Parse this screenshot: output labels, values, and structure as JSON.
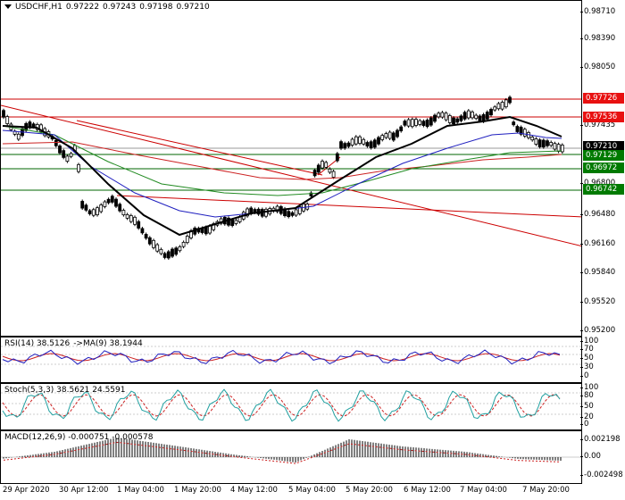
{
  "symbol": "USDCHF,H1",
  "ohlc": [
    "0.97222",
    "0.97243",
    "0.97198",
    "0.97210"
  ],
  "colors": {
    "bg": "#ffffff",
    "candle": "#000000",
    "trendline": "#cc0000",
    "hline_red": "#cc0000",
    "hline_green": "#006400",
    "ma_black": "#000000",
    "ma_blue": "#1f1fbf",
    "ma_green": "#228b22",
    "ma_red": "#cc2222",
    "price_label_red": "#e81010",
    "price_label_green": "#007a00",
    "price_label_current": "#000000"
  },
  "price_axis": [
    "0.98710",
    "0.98390",
    "0.98050",
    "0.97435",
    "0.96800",
    "0.96480",
    "0.96160",
    "0.95840",
    "0.95520",
    "0.95200"
  ],
  "price_labels": [
    {
      "value": "0.97726",
      "kind": "red"
    },
    {
      "value": "0.97536",
      "kind": "red"
    },
    {
      "value": "0.97210",
      "kind": "current"
    },
    {
      "value": "0.97129",
      "kind": "green"
    },
    {
      "value": "0.96972",
      "kind": "green"
    },
    {
      "value": "0.96742",
      "kind": "green"
    }
  ],
  "rsi": {
    "title": "RSI(14) 38.5126",
    "ma": "->MA(9) 38.1944",
    "axis": [
      "100",
      "70",
      "50",
      "30",
      "0"
    ]
  },
  "stoch": {
    "title": "Stoch(5,3,3) 38.5621 24.5591",
    "axis": [
      "100",
      "80",
      "50",
      "20",
      "0"
    ]
  },
  "macd": {
    "title": "MACD(12,26,9) -0.000751 -0.000578",
    "axis": [
      "0.002198",
      "0.00",
      "-0.002498"
    ]
  },
  "time_labels": [
    "29 Apr 2020",
    "30 Apr 12:00",
    "1 May 04:00",
    "1 May 20:00",
    "4 May 12:00",
    "5 May 04:00",
    "5 May 20:00",
    "6 May 12:00",
    "7 May 04:00",
    "7 May 20:00"
  ]
}
